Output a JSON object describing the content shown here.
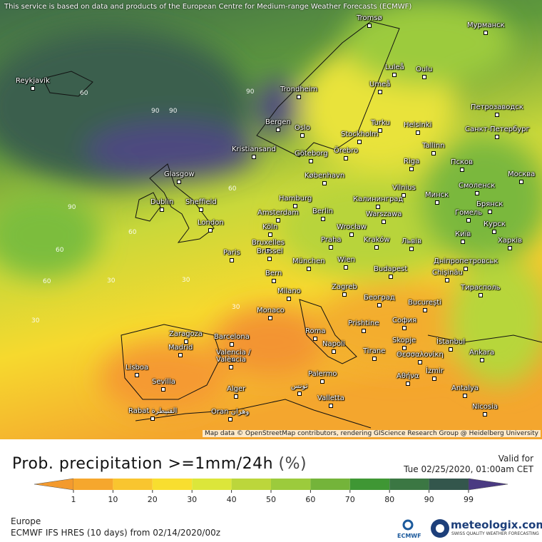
{
  "header": {
    "notice": "This service is based on data and products of the European Centre for Medium-range Weather Forecasts (ECMWF)"
  },
  "map": {
    "attribution": "Map data © OpenStreetMap contributors, rendering GIScience Research Group @ Heidelberg University",
    "cities": [
      "Reykjavík",
      "Tromsø",
      "Мурманск",
      "Luleå",
      "Oulu",
      "Umeå",
      "Trondheim",
      "Петрозаводск",
      "Bergen",
      "Oslo",
      "Stockholm",
      "Turku",
      "Helsinki",
      "Санкт-Петербург",
      "Kristiansand",
      "Göteborg",
      "Örebro",
      "Tallinn",
      "Glasgow",
      "København",
      "Riga",
      "Псков",
      "Москва",
      "Vilnius",
      "Минск",
      "Смоленск",
      "Hamburg",
      "Калининград",
      "Dublin",
      "Sheffield",
      "Amsterdam",
      "Berlin",
      "Warszawa",
      "Гомель",
      "Брянск",
      "London",
      "Köln",
      "Wrocław",
      "Київ",
      "Курск",
      "Bruxelles",
      "Brussel",
      "Praha",
      "Kraków",
      "Львів",
      "Харків",
      "Paris",
      "München",
      "Wien",
      "Дніпропетровськ",
      "Budapest",
      "Chișinău",
      "Bern",
      "Тирасполь",
      "Milano",
      "Zagreb",
      "Београд",
      "București",
      "Monaco",
      "Prishtine",
      "София",
      "Roma",
      "Zaragoza",
      "Barcelona",
      "Skopje",
      "İstanbul",
      "Napoli",
      "Madrid",
      "Tirane",
      "Θεσσαλονίκη",
      "Ankara",
      "Valencia /",
      "València",
      "Lisboa",
      "Αθήνα",
      "İzmir",
      "Palermo",
      "Sevilla",
      "تونس",
      "Alger",
      "Antalya",
      "Valletta",
      "Nicosia",
      "Rabat القنيطرة",
      "Oran وهران"
    ],
    "contour_labels": [
      60,
      90,
      90,
      90,
      90,
      60,
      60,
      60,
      30,
      30,
      30,
      30,
      60
    ]
  },
  "legend": {
    "title": "Prob. precipitation >=1mm/24h",
    "unit": "(%)",
    "ticks": [
      1,
      10,
      20,
      30,
      40,
      50,
      60,
      70,
      80,
      90,
      99
    ],
    "colors": [
      "#f39a2e",
      "#f6a72d",
      "#f9c52f",
      "#f8de2f",
      "#dce63a",
      "#bcd63b",
      "#9ccb3c",
      "#74b43a",
      "#3f9734",
      "#3b7743",
      "#33564c",
      "#4a3a82"
    ]
  },
  "valid": {
    "label": "Valid for",
    "time": "Tue 02/25/2020, 01:00am CET"
  },
  "footer": {
    "region": "Europe",
    "model": "ECMWF IFS HRES (10 days) from 02/14/2020/00z",
    "ecmwf": "ECMWF",
    "brand": "meteologix.com",
    "tagline": "SWISS QUALITY WEATHER FORECASTING"
  }
}
